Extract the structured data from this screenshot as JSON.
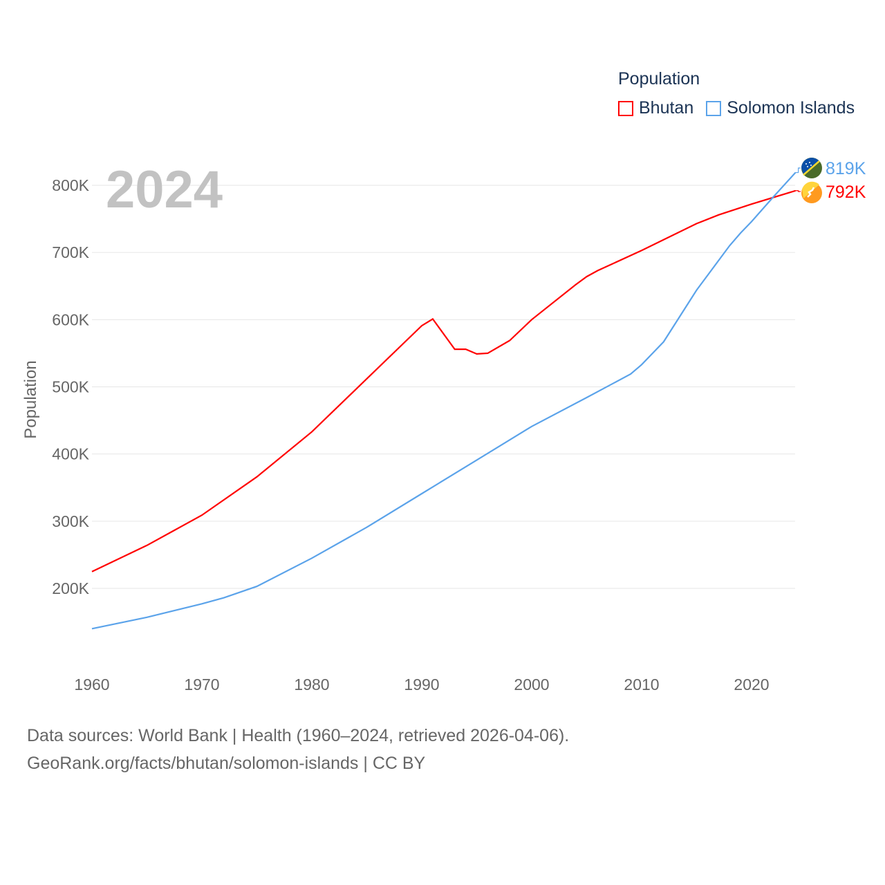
{
  "chart_data": {
    "type": "line",
    "title": "Population",
    "year_label": "2024",
    "xlabel": "",
    "ylabel": "Population",
    "xlim": [
      1960,
      2024
    ],
    "ylim": [
      100000,
      850000
    ],
    "x_ticks": [
      1960,
      1970,
      1980,
      1990,
      2000,
      2010,
      2020
    ],
    "x_tick_labels": [
      "1960",
      "1970",
      "1980",
      "1990",
      "2000",
      "2010",
      "2020"
    ],
    "y_ticks": [
      200000,
      300000,
      400000,
      500000,
      600000,
      700000,
      800000
    ],
    "y_tick_labels": [
      "200K",
      "300K",
      "400K",
      "500K",
      "600K",
      "700K",
      "800K"
    ],
    "grid": true,
    "legend_position": "top-right",
    "series": [
      {
        "name": "Bhutan",
        "color": "#ff0000",
        "end_label": "792K",
        "flag_icon": "bhutan-flag",
        "x": [
          1960,
          1965,
          1970,
          1975,
          1980,
          1985,
          1990,
          1991,
          1993,
          1994,
          1995,
          1996,
          1998,
          2000,
          2004,
          2005,
          2006,
          2010,
          2015,
          2017,
          2020,
          2024
        ],
        "values": [
          225000,
          264000,
          309000,
          366000,
          433000,
          512000,
          591000,
          601000,
          556000,
          556000,
          549000,
          550000,
          569000,
          600000,
          652000,
          664000,
          673000,
          703000,
          743000,
          756000,
          772000,
          792000
        ]
      },
      {
        "name": "Solomon Islands",
        "color": "#5ba3ea",
        "end_label": "819K",
        "flag_icon": "solomon-islands-flag",
        "x": [
          1960,
          1965,
          1970,
          1972,
          1975,
          1980,
          1985,
          1990,
          1995,
          2000,
          2005,
          2009,
          2010,
          2012,
          2015,
          2018,
          2019,
          2020,
          2022,
          2024
        ],
        "values": [
          140000,
          157000,
          177000,
          186000,
          203000,
          245000,
          291000,
          341000,
          391000,
          441000,
          484000,
          519000,
          533000,
          567000,
          644000,
          710000,
          729000,
          746000,
          783000,
          819000
        ]
      }
    ]
  },
  "footer": {
    "line1": "Data sources: World Bank | Health (1960–2024, retrieved 2026-04-06).",
    "line2": "GeoRank.org/facts/bhutan/solomon-islands | CC BY"
  }
}
